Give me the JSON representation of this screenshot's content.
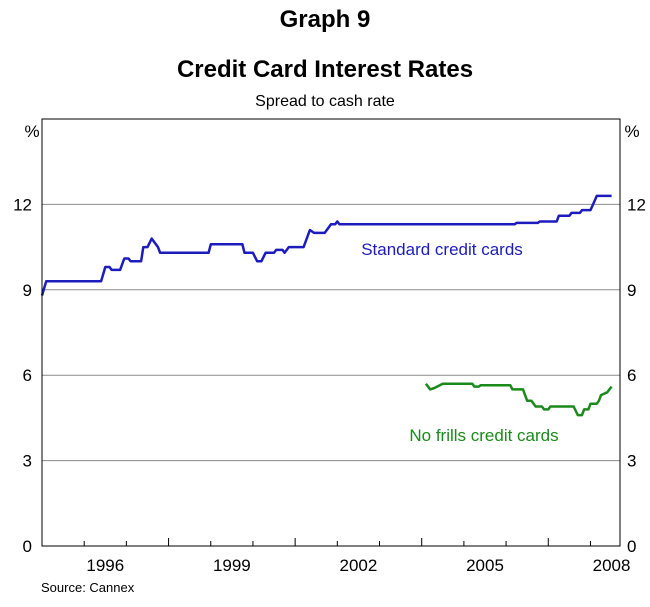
{
  "header": {
    "graph_label": "Graph 9",
    "title": "Credit Card Interest Rates",
    "subtitle": "Spread to cash rate"
  },
  "source": "Source: Cannex",
  "chart_data": {
    "type": "line",
    "title": "Credit Card Interest Rates",
    "subtitle": "Spread to cash rate",
    "ylabel_left": "%",
    "ylabel_right": "%",
    "ylim": [
      0,
      15
    ],
    "yticks": [
      0,
      3,
      6,
      9,
      12
    ],
    "xlim": [
      1995.0,
      2008.7
    ],
    "xticks": [
      {
        "label": "1996",
        "value": 1996.5
      },
      {
        "label": "1999",
        "value": 1999.5
      },
      {
        "label": "2002",
        "value": 2002.5
      },
      {
        "label": "2005",
        "value": 2005.5
      },
      {
        "label": "2008",
        "value": 2008.5
      }
    ],
    "grid": true,
    "colors": {
      "standard": "#1c1cbe",
      "no_frills": "#1a8a1a"
    },
    "series": [
      {
        "name": "Standard credit cards",
        "color": "#1c1cbe",
        "points": [
          [
            1995.0,
            8.8
          ],
          [
            1995.1,
            9.3
          ],
          [
            1996.4,
            9.3
          ],
          [
            1996.5,
            9.8
          ],
          [
            1996.6,
            9.8
          ],
          [
            1996.65,
            9.7
          ],
          [
            1996.85,
            9.7
          ],
          [
            1996.95,
            10.1
          ],
          [
            1997.05,
            10.1
          ],
          [
            1997.1,
            10.0
          ],
          [
            1997.35,
            10.0
          ],
          [
            1997.4,
            10.5
          ],
          [
            1997.5,
            10.5
          ],
          [
            1997.6,
            10.8
          ],
          [
            1997.75,
            10.5
          ],
          [
            1997.8,
            10.3
          ],
          [
            1998.95,
            10.3
          ],
          [
            1999.0,
            10.6
          ],
          [
            1999.75,
            10.6
          ],
          [
            1999.8,
            10.3
          ],
          [
            2000.0,
            10.3
          ],
          [
            2000.1,
            10.0
          ],
          [
            2000.2,
            10.0
          ],
          [
            2000.3,
            10.3
          ],
          [
            2000.5,
            10.3
          ],
          [
            2000.55,
            10.4
          ],
          [
            2000.7,
            10.4
          ],
          [
            2000.75,
            10.3
          ],
          [
            2000.85,
            10.5
          ],
          [
            2001.2,
            10.5
          ],
          [
            2001.35,
            11.1
          ],
          [
            2001.45,
            11.0
          ],
          [
            2001.7,
            11.0
          ],
          [
            2001.85,
            11.3
          ],
          [
            2001.95,
            11.3
          ],
          [
            2002.0,
            11.4
          ],
          [
            2002.05,
            11.3
          ],
          [
            2006.2,
            11.3
          ],
          [
            2006.25,
            11.35
          ],
          [
            2006.75,
            11.35
          ],
          [
            2006.8,
            11.4
          ],
          [
            2007.2,
            11.4
          ],
          [
            2007.25,
            11.6
          ],
          [
            2007.5,
            11.6
          ],
          [
            2007.55,
            11.7
          ],
          [
            2007.75,
            11.7
          ],
          [
            2007.8,
            11.8
          ],
          [
            2008.0,
            11.8
          ],
          [
            2008.15,
            12.3
          ],
          [
            2008.5,
            12.3
          ]
        ]
      },
      {
        "name": "No frills credit cards",
        "color": "#1a8a1a",
        "points": [
          [
            2004.1,
            5.7
          ],
          [
            2004.2,
            5.5
          ],
          [
            2004.3,
            5.55
          ],
          [
            2004.5,
            5.7
          ],
          [
            2005.2,
            5.7
          ],
          [
            2005.25,
            5.6
          ],
          [
            2005.35,
            5.6
          ],
          [
            2005.4,
            5.65
          ],
          [
            2006.1,
            5.65
          ],
          [
            2006.15,
            5.5
          ],
          [
            2006.4,
            5.5
          ],
          [
            2006.5,
            5.1
          ],
          [
            2006.6,
            5.1
          ],
          [
            2006.7,
            4.9
          ],
          [
            2006.85,
            4.9
          ],
          [
            2006.9,
            4.8
          ],
          [
            2007.0,
            4.8
          ],
          [
            2007.05,
            4.9
          ],
          [
            2007.6,
            4.9
          ],
          [
            2007.7,
            4.6
          ],
          [
            2007.8,
            4.6
          ],
          [
            2007.85,
            4.8
          ],
          [
            2007.95,
            4.8
          ],
          [
            2008.0,
            5.0
          ],
          [
            2008.15,
            5.0
          ],
          [
            2008.2,
            5.1
          ],
          [
            2008.25,
            5.3
          ],
          [
            2008.4,
            5.4
          ],
          [
            2008.5,
            5.6
          ]
        ]
      }
    ],
    "annotations": [
      {
        "text": "Standard credit cards",
        "series": "Standard credit cards"
      },
      {
        "text": "No frills credit cards",
        "series": "No frills credit cards"
      }
    ]
  }
}
